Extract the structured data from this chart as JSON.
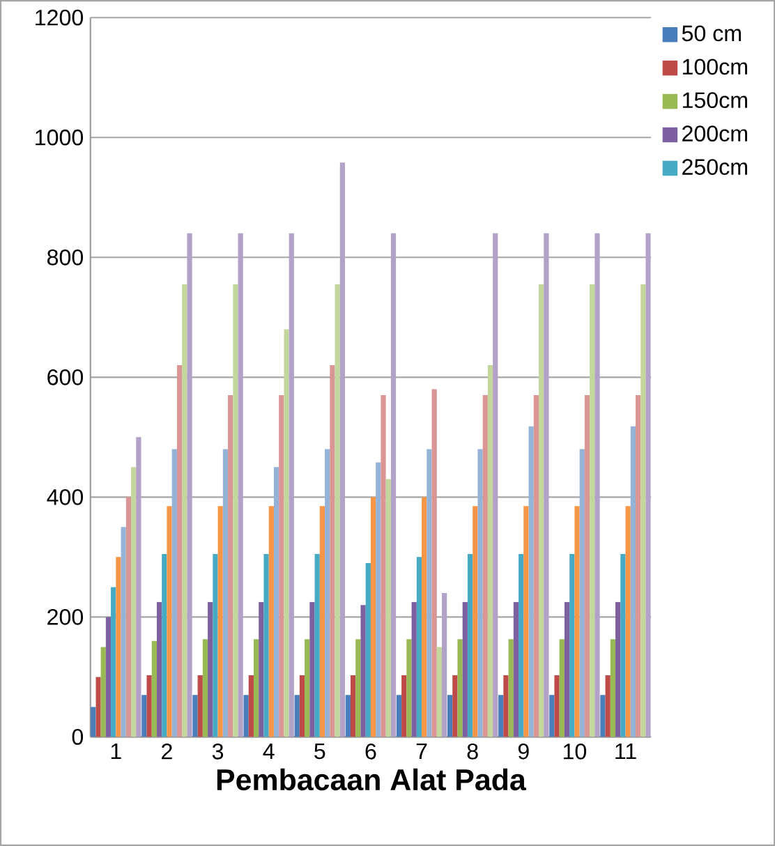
{
  "chart_data": {
    "type": "bar",
    "xlabel": "Pembacaan Alat Pada",
    "categories": [
      "1",
      "2",
      "3",
      "4",
      "5",
      "6",
      "7",
      "8",
      "9",
      "10",
      "11"
    ],
    "ylim": [
      0,
      1200
    ],
    "yticks": [
      0,
      200,
      400,
      600,
      800,
      1000,
      1200
    ],
    "grid": "y",
    "legend": "right",
    "series": [
      {
        "name": "50 cm",
        "color": "#4a7ebb",
        "values": [
          50,
          70,
          70,
          70,
          70,
          70,
          70,
          70,
          70,
          70,
          70
        ]
      },
      {
        "name": "100cm",
        "color": "#be4b48",
        "values": [
          100,
          103,
          103,
          103,
          103,
          103,
          103,
          103,
          103,
          103,
          103
        ]
      },
      {
        "name": "150cm",
        "color": "#98b954",
        "values": [
          150,
          160,
          163,
          163,
          163,
          163,
          163,
          163,
          163,
          163,
          163
        ]
      },
      {
        "name": "200cm",
        "color": "#7d60a0",
        "values": [
          200,
          225,
          225,
          225,
          225,
          220,
          225,
          225,
          225,
          225,
          225
        ]
      },
      {
        "name": "250cm",
        "color": "#46aac5",
        "values": [
          250,
          305,
          305,
          305,
          305,
          290,
          300,
          305,
          305,
          305,
          305
        ]
      },
      {
        "color": "#f79646",
        "values": [
          300,
          385,
          385,
          385,
          385,
          400,
          400,
          385,
          385,
          385,
          385
        ]
      },
      {
        "color": "#95b3d7",
        "values": [
          350,
          480,
          480,
          450,
          480,
          458,
          480,
          480,
          518,
          480,
          518
        ]
      },
      {
        "color": "#d99694",
        "values": [
          400,
          620,
          570,
          570,
          620,
          570,
          580,
          570,
          570,
          570,
          570
        ]
      },
      {
        "color": "#c3d69b",
        "values": [
          450,
          755,
          755,
          680,
          755,
          430,
          150,
          620,
          755,
          755,
          755
        ]
      },
      {
        "color": "#b3a2c7",
        "values": [
          500,
          840,
          840,
          840,
          958,
          840,
          240,
          840,
          840,
          840,
          840
        ]
      }
    ]
  }
}
